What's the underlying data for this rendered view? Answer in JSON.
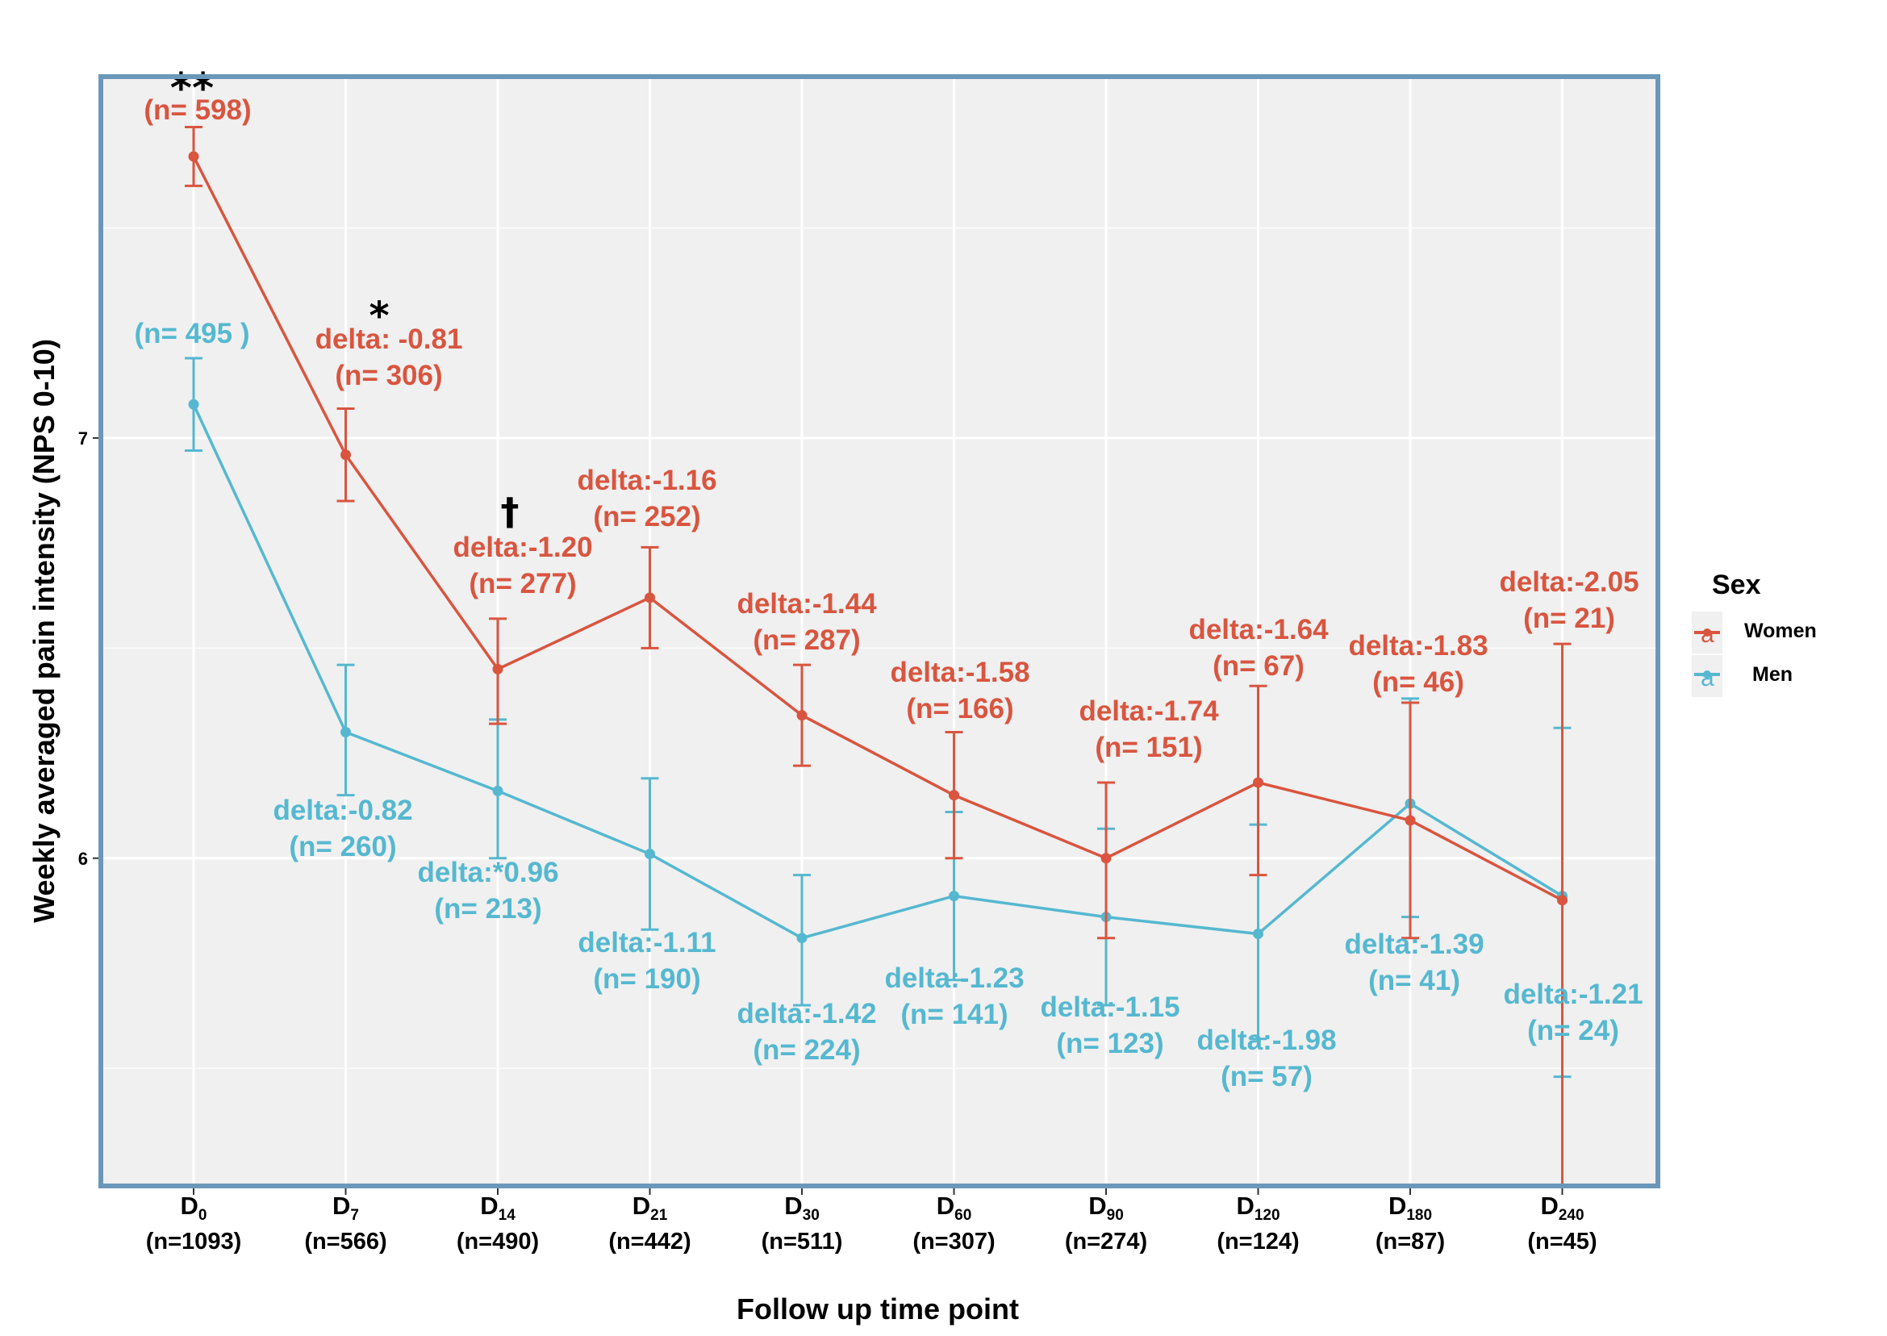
{
  "chart_data": {
    "type": "line",
    "xlabel": "Follow up time point",
    "ylabel": "Weekly averaged pain intensity (NPS 0-10)",
    "ylim": [
      5.22,
      7.86
    ],
    "y_ticks": [
      "6",
      "7"
    ],
    "y_tick_values": [
      6,
      7
    ],
    "grid": true,
    "legend_position": "right",
    "legend_title": "Sex",
    "legend_key_glyph": "a",
    "categories": [
      {
        "main": "D",
        "sub": "0",
        "n": "(n=1093)"
      },
      {
        "main": "D",
        "sub": "7",
        "n": "(n=566)"
      },
      {
        "main": "D",
        "sub": "14",
        "n": "(n=490)"
      },
      {
        "main": "D",
        "sub": "21",
        "n": "(n=442)"
      },
      {
        "main": "D",
        "sub": "30",
        "n": "(n=511)"
      },
      {
        "main": "D",
        "sub": "60",
        "n": "(n=307)"
      },
      {
        "main": "D",
        "sub": "90",
        "n": "(n=274)"
      },
      {
        "main": "D",
        "sub": "120",
        "n": "(n=124)"
      },
      {
        "main": "D",
        "sub": "180",
        "n": "(n=87)"
      },
      {
        "main": "D",
        "sub": "240",
        "n": "(n=45)"
      }
    ],
    "series": [
      {
        "name": "Women",
        "color": "#d9553f",
        "values": [
          7.67,
          6.96,
          6.45,
          6.62,
          6.34,
          6.15,
          6.0,
          6.18,
          6.09,
          5.9
        ],
        "ci_low": [
          7.6,
          6.85,
          6.32,
          6.5,
          6.22,
          6.0,
          5.81,
          5.96,
          5.81,
          5.22
        ],
        "ci_high": [
          7.74,
          7.07,
          6.57,
          6.74,
          6.46,
          6.3,
          6.18,
          6.41,
          6.37,
          6.51
        ],
        "labels": [
          {
            "line1": "",
            "line2": "(n= 598)"
          },
          {
            "line1": "delta: -0.81",
            "line2": "(n= 306)"
          },
          {
            "line1": "delta:-1.20",
            "line2": "(n= 277)"
          },
          {
            "line1": "delta:-1.16",
            "line2": "(n= 252)"
          },
          {
            "line1": "delta:-1.44",
            "line2": "(n= 287)"
          },
          {
            "line1": "delta:-1.58",
            "line2": "(n= 166)"
          },
          {
            "line1": "delta:-1.74",
            "line2": "(n= 151)"
          },
          {
            "line1": "delta:-1.64",
            "line2": "(n= 67)"
          },
          {
            "line1": "delta:-1.83",
            "line2": "(n= 46)"
          },
          {
            "line1": "delta:-2.05",
            "line2": "(n= 21)"
          }
        ]
      },
      {
        "name": "Men",
        "color": "#55b8d0",
        "values": [
          7.08,
          6.3,
          6.16,
          6.01,
          5.81,
          5.91,
          5.86,
          5.82,
          6.13,
          5.91
        ],
        "ci_low": [
          6.97,
          6.15,
          6.0,
          5.83,
          5.65,
          5.71,
          5.65,
          5.57,
          5.86,
          5.48
        ],
        "ci_high": [
          7.19,
          6.46,
          6.33,
          6.19,
          5.96,
          6.11,
          6.07,
          6.08,
          6.38,
          6.31
        ],
        "labels": [
          {
            "line1": "",
            "line2": "(n= 495 )"
          },
          {
            "line1": "delta:-0.82",
            "line2": "(n= 260)"
          },
          {
            "line1": "delta:*0.96",
            "line2": "(n= 213)"
          },
          {
            "line1": "delta:-1.11",
            "line2": "(n= 190)"
          },
          {
            "line1": "delta:-1.42",
            "line2": "(n= 224)"
          },
          {
            "line1": "delta:-1.23",
            "line2": "(n= 141)"
          },
          {
            "line1": "delta:-1.15",
            "line2": "(n= 123)"
          },
          {
            "line1": "delta:-1.98",
            "line2": "(n= 57)"
          },
          {
            "line1": "delta:-1.39",
            "line2": "(n= 41)"
          },
          {
            "line1": "delta:-1.21",
            "line2": "(n= 24)"
          }
        ]
      }
    ],
    "significance_marks": [
      {
        "label": "**",
        "at_index": 0
      },
      {
        "label": "*",
        "at_index": 1
      },
      {
        "label": "†",
        "at_index": 2
      }
    ]
  },
  "colors": {
    "panel_background": "#f0f0f0",
    "panel_border": "#6b98b9",
    "grid": "#ffffff"
  }
}
